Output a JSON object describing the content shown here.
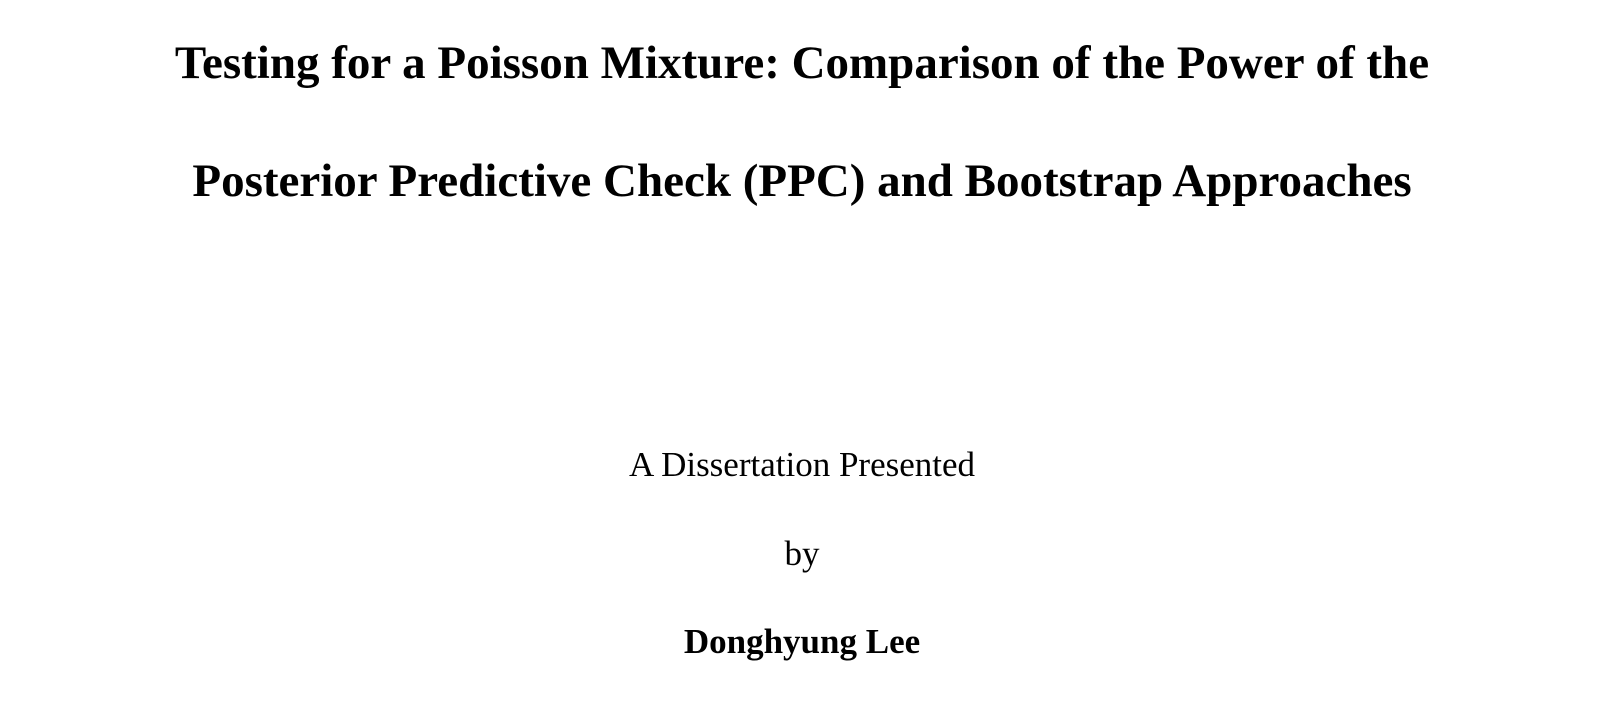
{
  "document": {
    "title_lines": [
      "Testing for a Poisson Mixture: Comparison of the Power of the",
      "Posterior Predictive Check (PPC) and Bootstrap Approaches"
    ],
    "presented_text": "A Dissertation Presented",
    "by_text": "by",
    "author": "Donghyung Lee"
  }
}
